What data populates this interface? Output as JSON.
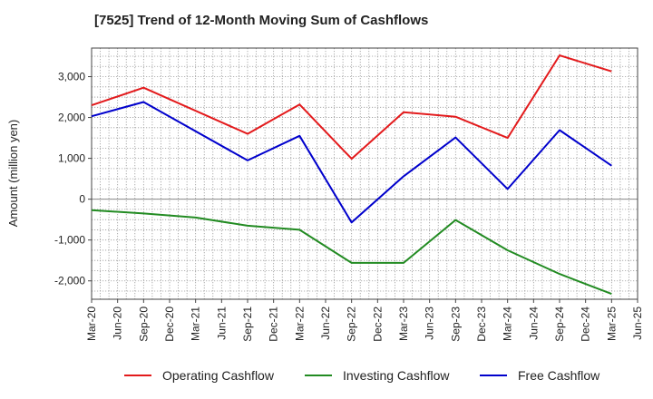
{
  "chart_data": {
    "type": "line",
    "title": "[7525]  Trend of 12-Month Moving Sum of Cashflows",
    "xlabel": "",
    "ylabel": "Amount (million yen)",
    "categories": [
      "Mar-20",
      "Jun-20",
      "Sep-20",
      "Dec-20",
      "Mar-21",
      "Jun-21",
      "Sep-21",
      "Dec-21",
      "Mar-22",
      "Jun-22",
      "Sep-22",
      "Dec-22",
      "Mar-23",
      "Jun-23",
      "Sep-23",
      "Dec-23",
      "Mar-24",
      "Jun-24",
      "Sep-24",
      "Dec-24",
      "Mar-25",
      "Jun-25"
    ],
    "ylim": [
      -2450,
      3700
    ],
    "yticks": [
      -2000,
      -1000,
      0,
      1000,
      2000,
      3000
    ],
    "ytick_labels": [
      "-2,000",
      "-1,000",
      "0",
      "1,000",
      "2,000",
      "3,000"
    ],
    "grid": true,
    "legend_position": "bottom",
    "series": [
      {
        "name": "Operating Cashflow",
        "color": "#e31a1c",
        "x": [
          "Mar-20",
          "Sep-20",
          "Sep-21",
          "Mar-22",
          "Sep-22",
          "Mar-23",
          "Sep-23",
          "Mar-24",
          "Sep-24",
          "Mar-25"
        ],
        "values": [
          2300,
          2730,
          1600,
          2320,
          990,
          2130,
          2020,
          1500,
          3520,
          3130
        ]
      },
      {
        "name": "Investing Cashflow",
        "color": "#228b22",
        "x": [
          "Mar-20",
          "Sep-20",
          "Mar-21",
          "Sep-21",
          "Mar-22",
          "Sep-22",
          "Mar-23",
          "Sep-23",
          "Mar-24",
          "Sep-24",
          "Mar-25"
        ],
        "values": [
          -270,
          -350,
          -450,
          -650,
          -750,
          -1560,
          -1560,
          -510,
          -1250,
          -1830,
          -2320
        ]
      },
      {
        "name": "Free Cashflow",
        "color": "#0000cc",
        "x": [
          "Mar-20",
          "Sep-20",
          "Sep-21",
          "Mar-22",
          "Sep-22",
          "Mar-23",
          "Sep-23",
          "Mar-24",
          "Sep-24",
          "Mar-25"
        ],
        "values": [
          2030,
          2380,
          950,
          1550,
          -570,
          560,
          1510,
          250,
          1690,
          820
        ]
      }
    ]
  }
}
